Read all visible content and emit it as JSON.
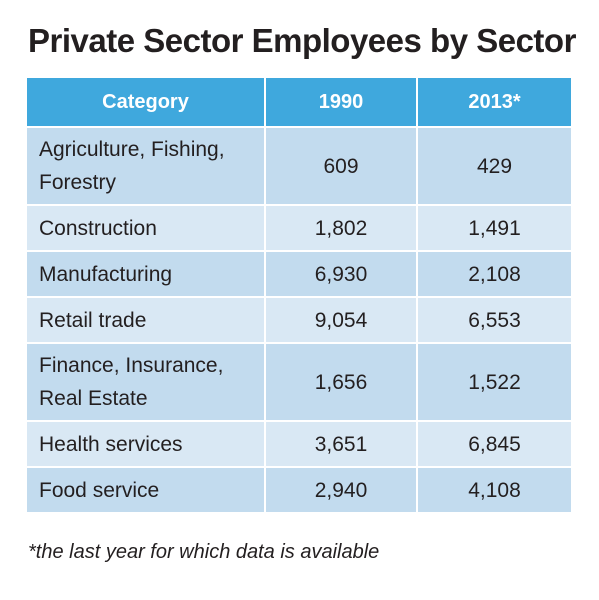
{
  "title": "Private Sector Employees by Sector",
  "footnote": "*the last year for which data is available",
  "chart_data": {
    "type": "table",
    "title": "Private Sector Employees by Sector",
    "columns": [
      "Category",
      "1990",
      "2013*"
    ],
    "rows": [
      {
        "category": [
          "Agriculture, Fishing,",
          "Forestry"
        ],
        "y1990": "609",
        "y2013": "429"
      },
      {
        "category": [
          "Construction"
        ],
        "y1990": "1,802",
        "y2013": "1,491"
      },
      {
        "category": [
          "Manufacturing"
        ],
        "y1990": "6,930",
        "y2013": "2,108"
      },
      {
        "category": [
          "Retail trade"
        ],
        "y1990": "9,054",
        "y2013": "6,553"
      },
      {
        "category": [
          "Finance, Insurance,",
          "Real Estate"
        ],
        "y1990": "1,656",
        "y2013": "1,522"
      },
      {
        "category": [
          "Health services"
        ],
        "y1990": "3,651",
        "y2013": "6,845"
      },
      {
        "category": [
          "Food service"
        ],
        "y1990": "2,940",
        "y2013": "4,108"
      }
    ],
    "colors": {
      "header": "#3fa8dd",
      "row_odd": "#c2dbee",
      "row_even": "#d9e8f4"
    }
  }
}
